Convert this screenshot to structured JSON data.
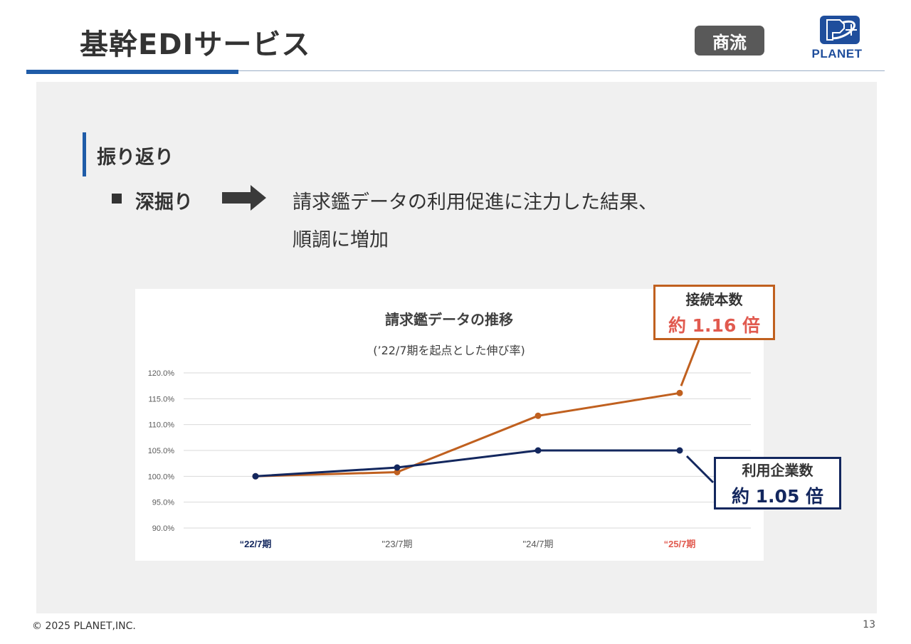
{
  "header": {
    "title": "基幹EDIサービス",
    "badge": "商流",
    "logo_text": "PLANET"
  },
  "section": {
    "title": "振り返り",
    "bullet_label": "深掘り",
    "description_line1": "請求鑑データの利用促進に注力した結果、",
    "description_line2": "順調に増加"
  },
  "callouts": {
    "connections": {
      "label": "接続本数",
      "value": "約 1.16 倍"
    },
    "companies": {
      "label": "利用企業数",
      "value": "約 1.05 倍"
    }
  },
  "footer": {
    "copyright": "© 2025 PLANET,INC.",
    "page_number": "13"
  },
  "colors": {
    "accent_blue": "#1f5ca8",
    "series_orange": "#c0601f",
    "series_navy": "#13275e",
    "highlight_red": "#e15a4f",
    "panel_gray": "#f0f0f0"
  },
  "chart_data": {
    "type": "line",
    "title": "請求鑑データの推移",
    "subtitle": "(’22/7期を起点とした伸び率)",
    "categories": [
      "“22/7期",
      "\"23/7期",
      "\"24/7期",
      "“25/7期"
    ],
    "category_styles": [
      "bold-navy",
      "normal",
      "normal",
      "bold-red"
    ],
    "series": [
      {
        "name": "接続本数",
        "color": "#c0601f",
        "values": [
          100.0,
          100.8,
          111.7,
          116.1
        ]
      },
      {
        "name": "利用企業数",
        "color": "#13275e",
        "values": [
          100.0,
          101.7,
          105.0,
          105.0
        ]
      }
    ],
    "ylim": [
      90,
      120
    ],
    "y_ticks": [
      "90.0%",
      "95.0%",
      "100.0%",
      "105.0%",
      "110.0%",
      "115.0%",
      "120.0%"
    ],
    "grid": true,
    "legend": "none"
  }
}
